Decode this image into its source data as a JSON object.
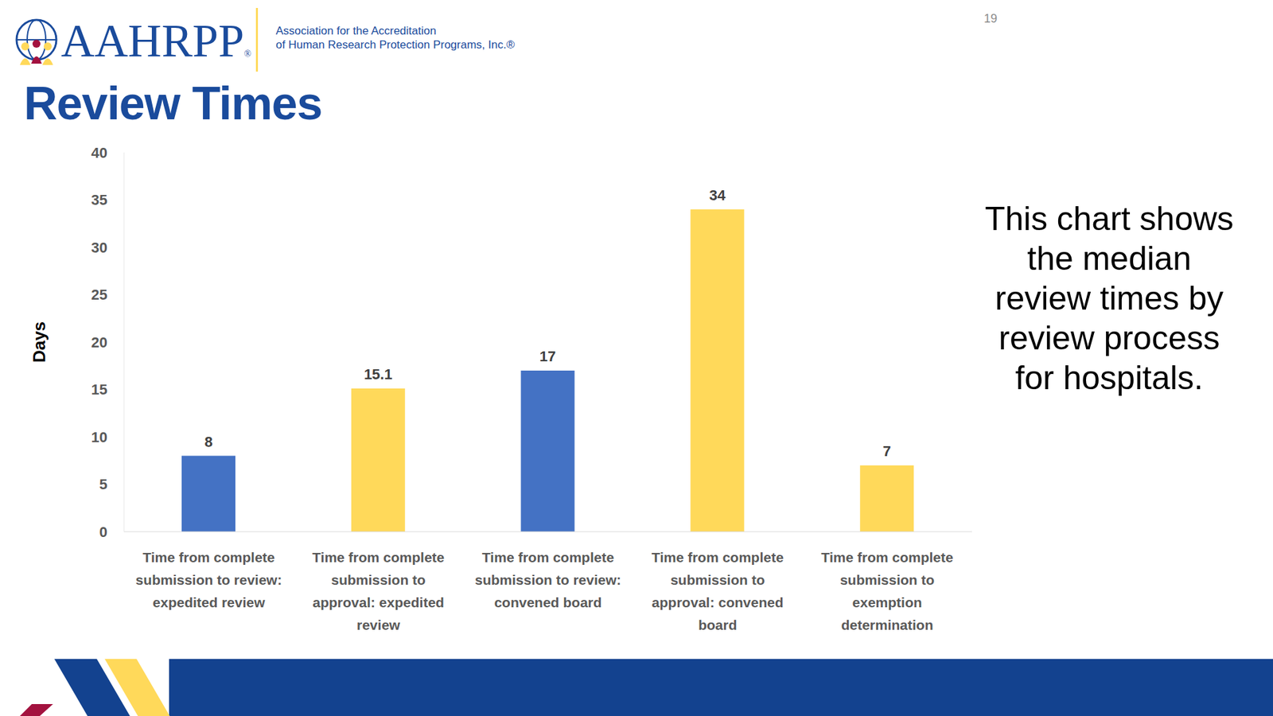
{
  "slide": {
    "page_number": 19,
    "logo": "AAHRPP",
    "logo_mark": "®",
    "organization": [
      "Association for the Accreditation",
      "of Human Research Protection Programs, Inc.®"
    ]
  },
  "chart_data": {
    "type": "bar",
    "title": "Review Times",
    "y_label": "Days",
    "categories": [
      "Time from complete submission to review: expedited review",
      "Time from complete submission to approval: expedited review",
      "Time from complete submission to review: convened board",
      "Time from complete submission to approval: convened board",
      "Time from complete submission to exemption determination"
    ],
    "values": [
      8,
      15.1,
      17,
      34,
      7
    ],
    "colors": [
      "#4472c4",
      "#ffd95a",
      "#4472c4",
      "#ffd95a",
      "#ffd95a"
    ],
    "ylim": [
      0,
      40
    ],
    "yticks": [
      0,
      5,
      10,
      15,
      20,
      25,
      30,
      35,
      40
    ],
    "grid": false,
    "data_labels": true,
    "annotation": [
      "This chart shows",
      "the median",
      "review times by",
      "review process",
      "for hospitals."
    ]
  }
}
